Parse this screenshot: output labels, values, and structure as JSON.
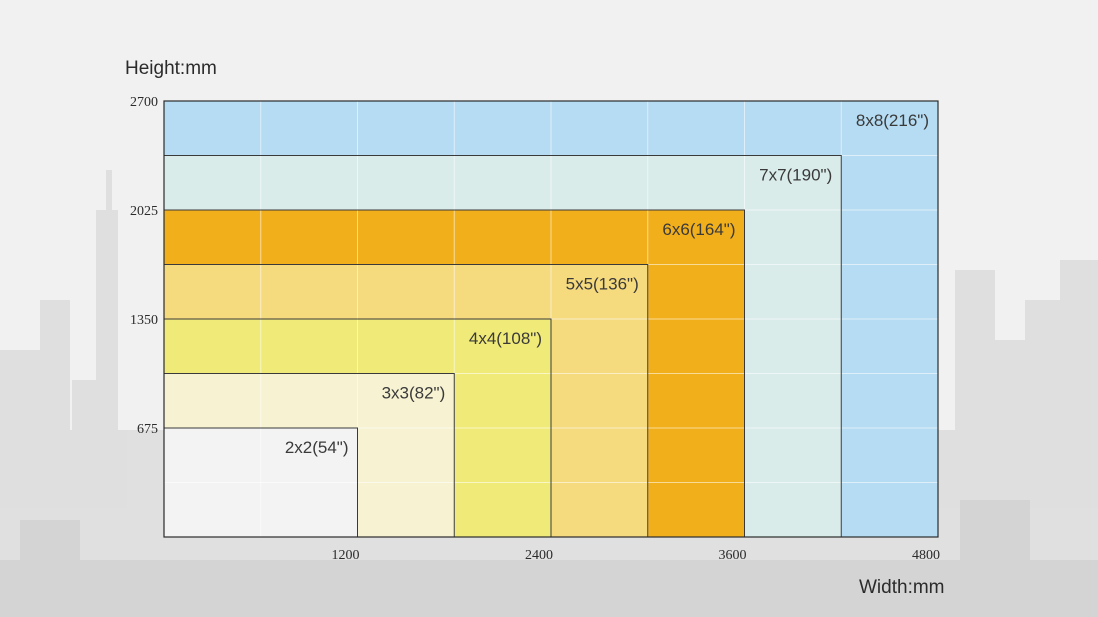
{
  "chart_data": {
    "type": "area",
    "xlabel": "Width:mm",
    "ylabel": "Height:mm",
    "xlim": [
      0,
      4800
    ],
    "ylim": [
      0,
      2700
    ],
    "x_ticks": [
      1200,
      2400,
      3600,
      4800
    ],
    "y_ticks": [
      675,
      1350,
      2025,
      2700
    ],
    "grid": true,
    "series": [
      {
        "name": "8x8(216\")",
        "width": 4800,
        "height": 2700,
        "color": "#b5dcf3"
      },
      {
        "name": "7x7(190\")",
        "width": 4200,
        "height": 2362.5,
        "color": "#d9ecea"
      },
      {
        "name": "6x6(164\")",
        "width": 3600,
        "height": 2025,
        "color": "#f2af1c"
      },
      {
        "name": "5x5(136\")",
        "width": 3000,
        "height": 1687.5,
        "color": "#f5da7e"
      },
      {
        "name": "4x4(108\")",
        "width": 2400,
        "height": 1350,
        "color": "#f0ea78"
      },
      {
        "name": "3x3(82\")",
        "width": 1800,
        "height": 1012.5,
        "color": "#f6f2d2"
      },
      {
        "name": "2x2(54\")",
        "width": 1200,
        "height": 675,
        "color": "#f3f3f3"
      }
    ]
  }
}
